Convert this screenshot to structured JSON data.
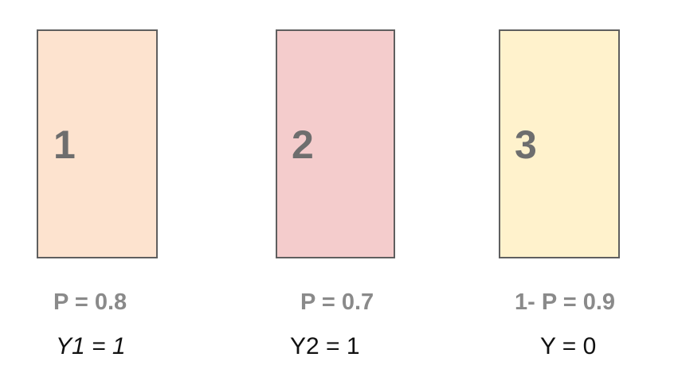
{
  "cards": [
    {
      "number": "1",
      "fill": "#fde3cf",
      "probability": "P = 0.8",
      "outcome": "Y1 = 1"
    },
    {
      "number": "2",
      "fill": "#f4cccc",
      "probability": "P = 0.7",
      "outcome": "Y2 = 1"
    },
    {
      "number": "3",
      "fill": "#fff2cc",
      "probability": "1- P = 0.9",
      "outcome": "Y = 0"
    }
  ]
}
